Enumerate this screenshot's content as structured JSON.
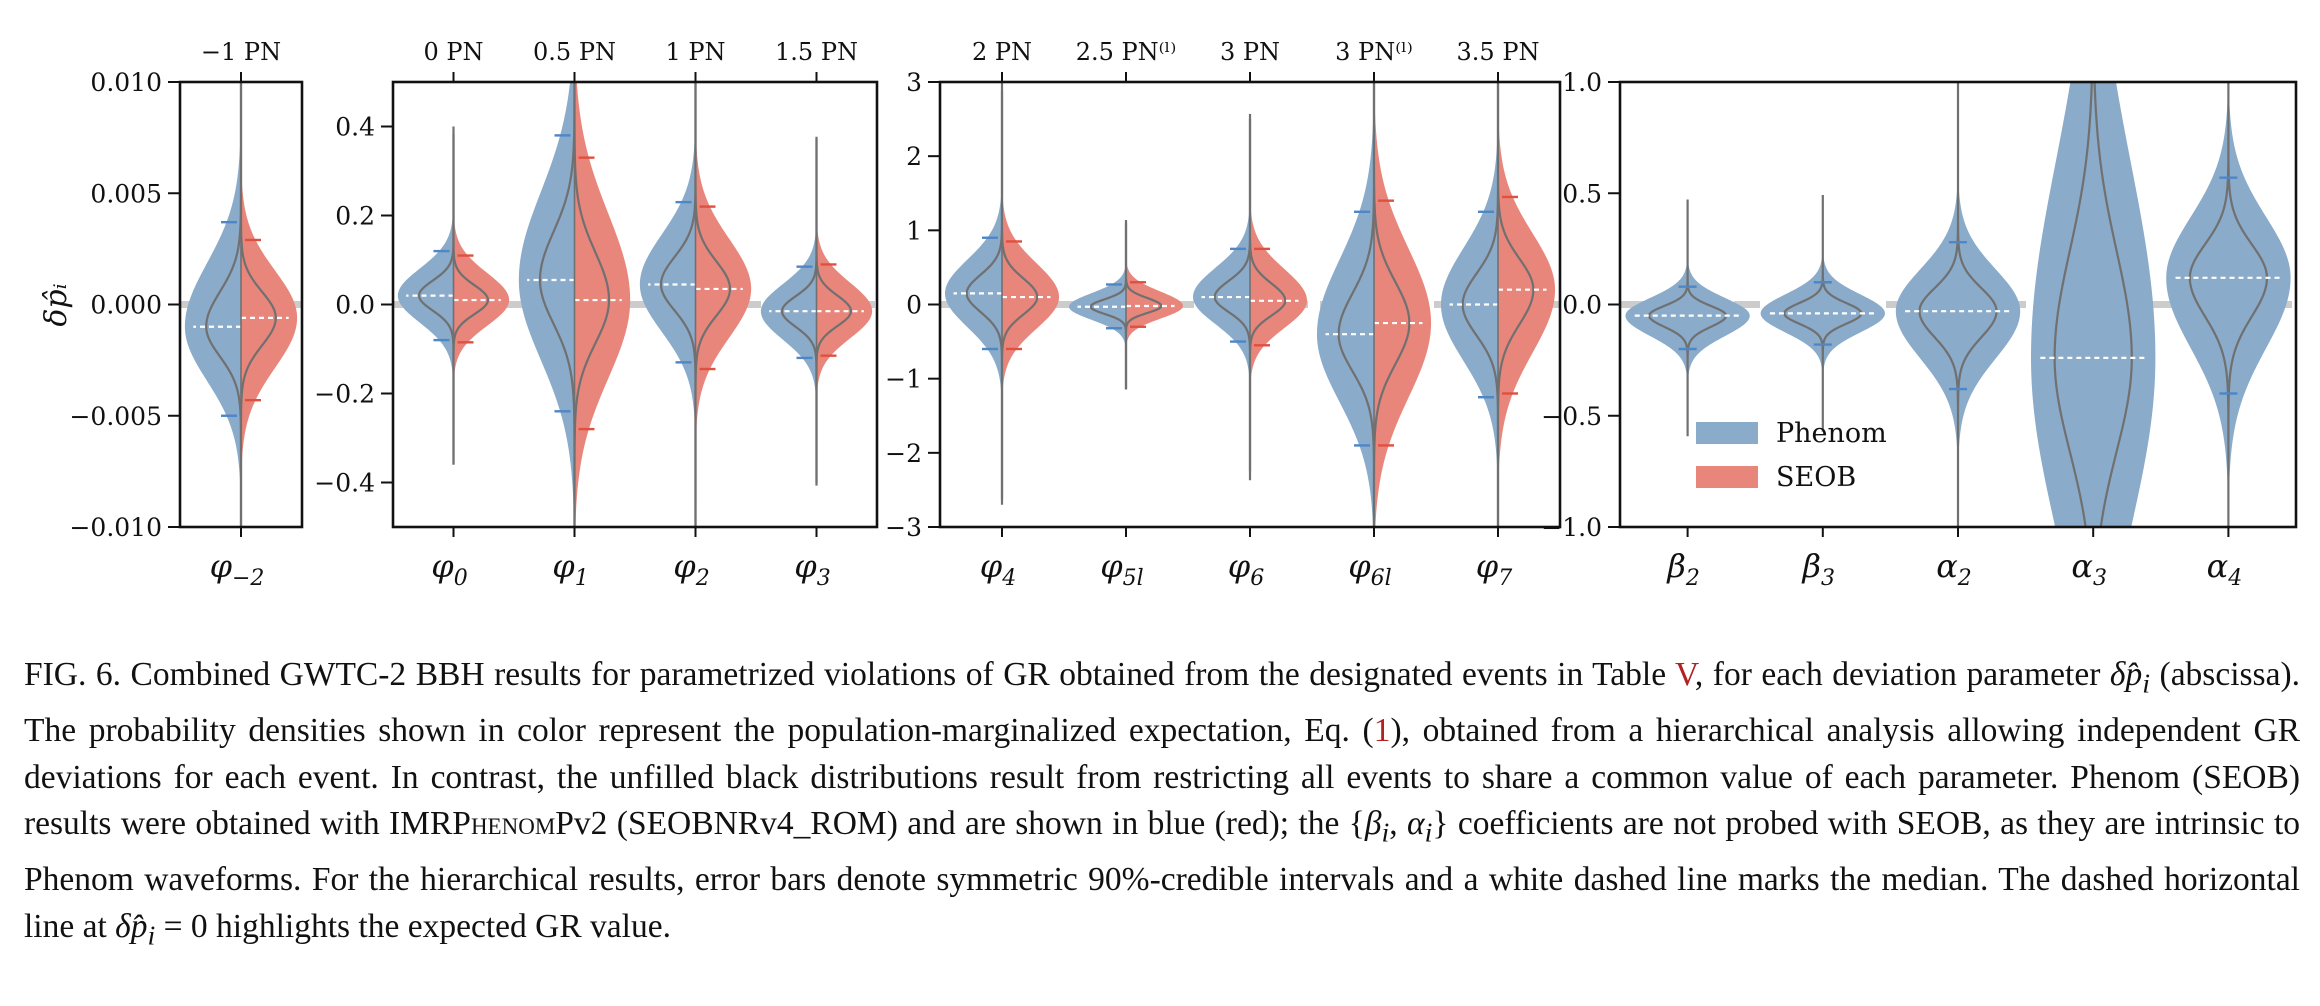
{
  "colors": {
    "phenom": "#8aabca",
    "seob": "#e8867c",
    "outline": "#707070",
    "zero_line": "#cccccc",
    "error_phenom": "#4f86c6",
    "error_seob": "#e05040"
  },
  "ylabel": "δp̂ᵢ",
  "legend": {
    "phenom": "Phenom",
    "seob": "SEOB"
  },
  "chart_data": [
    {
      "type": "violin",
      "panel": "p1",
      "ylim": [
        -0.01,
        0.01
      ],
      "yticks": [
        -0.01,
        -0.005,
        0.0,
        0.005,
        0.01
      ],
      "ytick_labels": [
        "−0.010",
        "−0.005",
        "0.000",
        "0.005",
        "0.010"
      ],
      "top_labels": [
        "−1 PN"
      ],
      "params": [
        {
          "name": "φ",
          "sub": "−2",
          "phenom": {
            "median": -0.001,
            "lo": -0.005,
            "hi": 0.0037
          },
          "seob": {
            "median": -0.0006,
            "lo": -0.0043,
            "hi": 0.0029
          }
        }
      ]
    },
    {
      "type": "violin",
      "panel": "p2",
      "ylim": [
        -0.5,
        0.5
      ],
      "yticks": [
        -0.4,
        -0.2,
        0.0,
        0.2,
        0.4
      ],
      "ytick_labels": [
        "−0.4",
        "−0.2",
        "0.0",
        "0.2",
        "0.4"
      ],
      "top_labels": [
        "0 PN",
        "0.5 PN",
        "1 PN",
        "1.5 PN"
      ],
      "params": [
        {
          "name": "φ",
          "sub": "0",
          "phenom": {
            "median": 0.02,
            "lo": -0.08,
            "hi": 0.12
          },
          "seob": {
            "median": 0.01,
            "lo": -0.085,
            "hi": 0.11
          }
        },
        {
          "name": "φ",
          "sub": "1",
          "phenom": {
            "median": 0.055,
            "lo": -0.24,
            "hi": 0.38
          },
          "seob": {
            "median": 0.01,
            "lo": -0.28,
            "hi": 0.33
          }
        },
        {
          "name": "φ",
          "sub": "2",
          "phenom": {
            "median": 0.045,
            "lo": -0.13,
            "hi": 0.23
          },
          "seob": {
            "median": 0.035,
            "lo": -0.145,
            "hi": 0.22
          }
        },
        {
          "name": "φ",
          "sub": "3",
          "phenom": {
            "median": -0.015,
            "lo": -0.12,
            "hi": 0.085
          },
          "seob": {
            "median": -0.015,
            "lo": -0.115,
            "hi": 0.09
          }
        }
      ]
    },
    {
      "type": "violin",
      "panel": "p3",
      "ylim": [
        -3,
        3
      ],
      "yticks": [
        -3,
        -2,
        -1,
        0,
        1,
        2,
        3
      ],
      "ytick_labels": [
        "−3",
        "−2",
        "−1",
        "0",
        "1",
        "2",
        "3"
      ],
      "top_labels": [
        "2 PN",
        "2.5 PN⁽ˡ⁾",
        "3 PN",
        "3 PN⁽ˡ⁾",
        "3.5 PN"
      ],
      "params": [
        {
          "name": "φ",
          "sub": "4",
          "phenom": {
            "median": 0.15,
            "lo": -0.6,
            "hi": 0.9
          },
          "seob": {
            "median": 0.1,
            "lo": -0.6,
            "hi": 0.85
          }
        },
        {
          "name": "φ",
          "sub": "5l",
          "phenom": {
            "median": -0.03,
            "lo": -0.32,
            "hi": 0.27
          },
          "seob": {
            "median": -0.02,
            "lo": -0.3,
            "hi": 0.3
          }
        },
        {
          "name": "φ",
          "sub": "6",
          "phenom": {
            "median": 0.1,
            "lo": -0.5,
            "hi": 0.75
          },
          "seob": {
            "median": 0.05,
            "lo": -0.55,
            "hi": 0.75
          }
        },
        {
          "name": "φ",
          "sub": "6l",
          "phenom": {
            "median": -0.4,
            "lo": -1.9,
            "hi": 1.25
          },
          "seob": {
            "median": -0.25,
            "lo": -1.9,
            "hi": 1.4
          }
        },
        {
          "name": "φ",
          "sub": "7",
          "phenom": {
            "median": 0.0,
            "lo": -1.25,
            "hi": 1.25
          },
          "seob": {
            "median": 0.2,
            "lo": -1.2,
            "hi": 1.45
          }
        }
      ]
    },
    {
      "type": "violin",
      "panel": "p4",
      "ylim": [
        -1,
        1
      ],
      "yticks": [
        -1.0,
        -0.5,
        0.0,
        0.5,
        1.0
      ],
      "ytick_labels": [
        "−1.0",
        "−0.5",
        "0.0",
        "0.5",
        "1.0"
      ],
      "top_labels": [],
      "params": [
        {
          "name": "β",
          "sub": "2",
          "phenom": {
            "median": -0.05,
            "lo": -0.2,
            "hi": 0.08
          }
        },
        {
          "name": "β",
          "sub": "3",
          "phenom": {
            "median": -0.04,
            "lo": -0.18,
            "hi": 0.1
          }
        },
        {
          "name": "α",
          "sub": "2",
          "phenom": {
            "median": -0.03,
            "lo": -0.38,
            "hi": 0.28
          }
        },
        {
          "name": "α",
          "sub": "3",
          "phenom": {
            "median": -0.24,
            "lo": -1.5,
            "hi": 1.2
          }
        },
        {
          "name": "α",
          "sub": "4",
          "phenom": {
            "median": 0.12,
            "lo": -0.4,
            "hi": 0.57
          }
        }
      ]
    }
  ],
  "caption": {
    "t1": "FIG. 6. Combined GWTC-2 BBH results for parametrized violations of GR obtained from the designated events in Table ",
    "ref_table": "V",
    "t2": ", for each deviation parameter ",
    "sym_dp": "δp̂",
    "sym_i": "i",
    "t3": " (abscissa). The probability densities shown in color represent the population-marginalized expectation, Eq. (",
    "ref_eq": "1",
    "t4": "), obtained from a hierarchical analysis allowing independent GR deviations for each event. In contrast, the unfilled black distributions result from restricting all events to share a common value of each parameter. Phenom (SEOB) results were obtained with IMRP",
    "sc1": "henom",
    "t5": "Pv2 (SEOBNRv4_ROM) and are shown in blue (red); the {",
    "sym_beta": "β",
    "sym_alpha": "α",
    "t6": "} coefficients are not probed with SEOB, as they are intrinsic to Phenom waveforms. For the hierarchical results, error bars denote symmetric 90%-credible intervals and a white dashed line marks the median. The dashed horizontal line at ",
    "t7": " = 0 highlights the expected GR value."
  }
}
